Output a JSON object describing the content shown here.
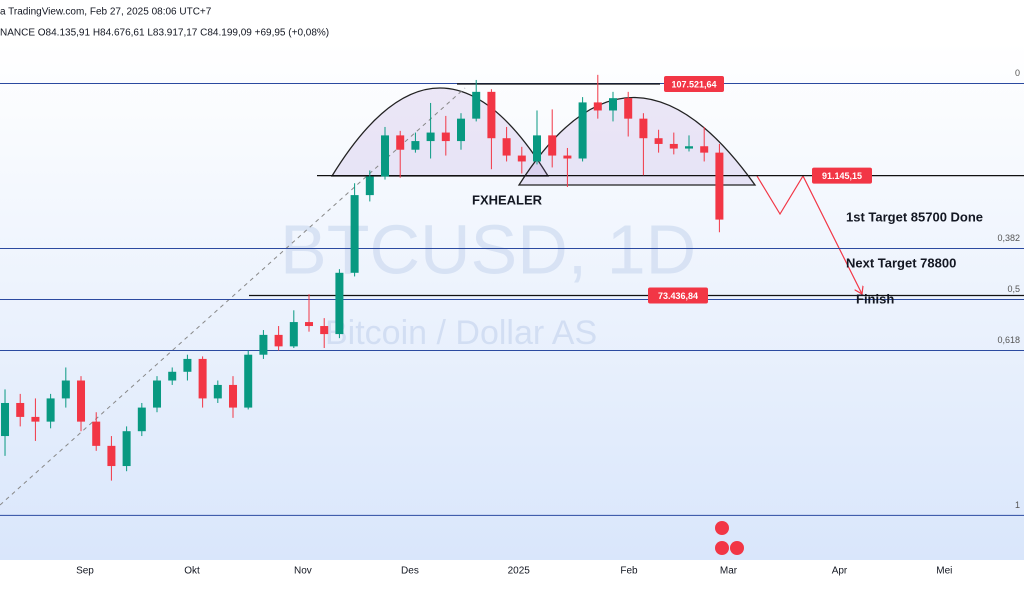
{
  "header": {
    "source": "a TradingView.com, Feb 27, 2025 08:06 UTC+7",
    "ohlc": "NANCE O84.135,91 H84.676,61 L83.917,17 C84.199,09 +69,95 (+0,08%)"
  },
  "chart_data": {
    "type": "candlestick",
    "watermark": "BTCUSD, 1D",
    "watermark_sub": "Bitcoin / Dollar AS",
    "log_scale": true,
    "ylim": [
      46000,
      118500
    ],
    "xlim": [
      -0.33,
      67.04
    ],
    "xticks": [
      {
        "value": 5.26,
        "label": "Sep"
      },
      {
        "value": 12.3,
        "label": "Okt"
      },
      {
        "value": 19.6,
        "label": "Nov"
      },
      {
        "value": 26.64,
        "label": "Des"
      },
      {
        "value": 33.8,
        "label": "2025"
      },
      {
        "value": 41.05,
        "label": "Feb"
      },
      {
        "value": 47.6,
        "label": "Mar"
      },
      {
        "value": 54.9,
        "label": "Apr"
      },
      {
        "value": 61.8,
        "label": "Mei"
      }
    ],
    "up_color": "#089981",
    "down_color": "#f23645",
    "open": [
      57000,
      60500,
      59000,
      58500,
      61000,
      63000,
      58500,
      56000,
      54000,
      57500,
      60000,
      63000,
      64000,
      65500,
      61000,
      62500,
      60000,
      66000,
      68400,
      67000,
      70000,
      69500,
      68500,
      76500,
      88000,
      91000,
      98000,
      95500,
      97000,
      98500,
      97000,
      101000,
      106000,
      97500,
      94500,
      93500,
      98000,
      94500,
      94000,
      104000,
      102500,
      104800,
      101000,
      97500,
      96500,
      95700,
      96100,
      95000
    ],
    "high": [
      62000,
      61500,
      61000,
      61500,
      64500,
      63500,
      59500,
      57000,
      58000,
      60500,
      63500,
      64500,
      66000,
      65800,
      63000,
      63500,
      66500,
      69000,
      69500,
      71500,
      73600,
      70500,
      77000,
      89900,
      92000,
      99500,
      98800,
      98500,
      103900,
      101500,
      102000,
      108300,
      106500,
      99500,
      96000,
      102500,
      102700,
      95800,
      105000,
      109300,
      106000,
      106000,
      102000,
      99000,
      98500,
      98000,
      99500,
      96500
    ],
    "low": [
      55000,
      58000,
      56500,
      57800,
      60000,
      57500,
      55500,
      52600,
      53500,
      57000,
      59500,
      62500,
      63000,
      60000,
      60500,
      58900,
      59800,
      65500,
      66500,
      66800,
      68800,
      66800,
      68000,
      76000,
      87000,
      90500,
      90800,
      95000,
      94000,
      94500,
      95500,
      100500,
      92200,
      93500,
      91500,
      93000,
      92500,
      89300,
      93500,
      101000,
      100500,
      97800,
      91200,
      95000,
      94700,
      95200,
      93500,
      82300
    ],
    "close": [
      60500,
      59000,
      58500,
      61000,
      63000,
      58500,
      56000,
      54000,
      57500,
      60000,
      63000,
      64000,
      65500,
      61000,
      62500,
      60000,
      66000,
      68400,
      67000,
      70000,
      69500,
      68500,
      76500,
      88000,
      91000,
      98000,
      95500,
      97000,
      98500,
      97000,
      101000,
      106000,
      97500,
      94500,
      93500,
      98000,
      94500,
      94000,
      104000,
      102500,
      104800,
      101000,
      97500,
      96500,
      95700,
      96100,
      95000,
      84199.09
    ],
    "price_labels": [
      {
        "value": 107521.64,
        "label": "107.521,64"
      },
      {
        "value": 91145.15,
        "label": "91.145,15"
      },
      {
        "value": 73436.84,
        "label": "73.436,84"
      }
    ],
    "fib_prices": [
      107600,
      49400
    ],
    "fib_levels": [
      0,
      {
        "value": 0.382,
        "label": "0,382"
      },
      {
        "value": 0.5,
        "label": "0,5"
      },
      {
        "value": 0.618,
        "label": "0,618"
      },
      1
    ],
    "annotations": [
      "FXHEALER",
      "1st Target 85700 Done",
      "Next Target 78800",
      "Finish"
    ]
  }
}
